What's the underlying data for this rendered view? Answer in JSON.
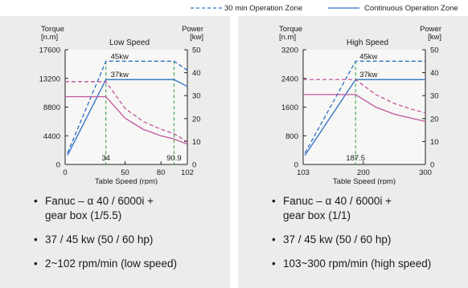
{
  "legend": {
    "dashed_label": "30 min Operation Zone",
    "solid_label": "Continuous Operation Zone",
    "dashed_color": "#2e6fc4",
    "solid_color": "#2e6fc4"
  },
  "chart_data": [
    {
      "type": "line",
      "title": "Low Speed",
      "ylabel_left": [
        "Torque",
        "[n.m]"
      ],
      "ylabel_right": [
        "Power",
        "[kw]"
      ],
      "xlabel": "Table Speed (rpm)",
      "xlim": [
        0,
        102
      ],
      "ylim_left": [
        0,
        17600
      ],
      "ylim_right": [
        0,
        50
      ],
      "x_ticks": [
        "0",
        "50",
        "80",
        "102"
      ],
      "x_tick_values": [
        0,
        50,
        80,
        102
      ],
      "y_left_ticks": [
        "0",
        "4400",
        "8800",
        "13200",
        "17600"
      ],
      "y_left_tick_values": [
        0,
        4400,
        8800,
        13200,
        17600
      ],
      "y_right_ticks": [
        "0",
        "10",
        "20",
        "30",
        "40",
        "50"
      ],
      "y_right_tick_values": [
        0,
        10,
        20,
        30,
        40,
        50
      ],
      "markers": [
        {
          "x": 34,
          "label": "34"
        },
        {
          "x": 90.9,
          "label": "90.9"
        }
      ],
      "annotations": [
        {
          "text": "45kw",
          "x": 38,
          "y_power": 45
        },
        {
          "text": "37kw",
          "x": 38,
          "y_power": 37
        }
      ],
      "series": [
        {
          "axis": "power",
          "style": "dashed",
          "color": "#2e6fc4",
          "x": [
            2,
            34,
            90.9,
            102
          ],
          "y": [
            5,
            45,
            45,
            41
          ]
        },
        {
          "axis": "power",
          "style": "solid",
          "color": "#2e6fc4",
          "x": [
            2,
            34,
            90.9,
            102
          ],
          "y": [
            4,
            37,
            37,
            34
          ]
        },
        {
          "axis": "torque",
          "style": "dashed",
          "color": "#c0559c",
          "x": [
            0,
            34,
            50,
            65,
            80,
            90.9,
            102
          ],
          "y": [
            12700,
            12700,
            8600,
            6600,
            5400,
            4700,
            3500
          ]
        },
        {
          "axis": "torque",
          "style": "solid",
          "color": "#c0559c",
          "x": [
            0,
            34,
            50,
            65,
            80,
            90.9,
            102
          ],
          "y": [
            10400,
            10400,
            7100,
            5400,
            4400,
            3900,
            3100
          ]
        }
      ],
      "grid": false
    },
    {
      "type": "line",
      "title": "High Speed",
      "ylabel_left": [
        "Torque",
        "[n.m]"
      ],
      "ylabel_right": [
        "Power",
        "[kw]"
      ],
      "xlabel": "Table Speed (rpm)",
      "xlim": [
        103,
        300
      ],
      "ylim_left": [
        0,
        3200
      ],
      "ylim_right": [
        0,
        50
      ],
      "x_ticks": [
        "103",
        "200",
        "300"
      ],
      "x_tick_values": [
        103,
        200,
        300
      ],
      "y_left_ticks": [
        "0",
        "800",
        "1600",
        "2400",
        "3200"
      ],
      "y_left_tick_values": [
        0,
        800,
        1600,
        2400,
        3200
      ],
      "y_right_ticks": [
        "0",
        "10",
        "20",
        "30",
        "40",
        "50"
      ],
      "y_right_tick_values": [
        0,
        10,
        20,
        30,
        40,
        50
      ],
      "markers": [
        {
          "x": 187.5,
          "label": "187.5"
        }
      ],
      "annotations": [
        {
          "text": "45kw",
          "x": 194,
          "y_power": 45
        },
        {
          "text": "37kw",
          "x": 194,
          "y_power": 37
        }
      ],
      "series": [
        {
          "axis": "power",
          "style": "dashed",
          "color": "#2e6fc4",
          "x": [
            106,
            187.5,
            300
          ],
          "y": [
            5,
            45,
            45
          ]
        },
        {
          "axis": "power",
          "style": "solid",
          "color": "#2e6fc4",
          "x": [
            106,
            187.5,
            300
          ],
          "y": [
            4,
            37,
            37
          ]
        },
        {
          "axis": "torque",
          "style": "dashed",
          "color": "#c0559c",
          "x": [
            103,
            187.5,
            220,
            250,
            280,
            300
          ],
          "y": [
            2370,
            2370,
            1950,
            1700,
            1530,
            1440
          ]
        },
        {
          "axis": "torque",
          "style": "solid",
          "color": "#c0559c",
          "x": [
            103,
            187.5,
            220,
            250,
            280,
            300
          ],
          "y": [
            1950,
            1950,
            1600,
            1400,
            1280,
            1200
          ]
        }
      ],
      "grid": false
    }
  ],
  "specs": [
    {
      "motor": "Fanuc – α 40 / 6000i +",
      "gearbox": "gear box (1/5.5)",
      "power": "37 / 45 kw (50 / 60 hp)",
      "speed": "2~102 rpm/min (low speed)"
    },
    {
      "motor": "Fanuc – α 40 / 6000i +",
      "gearbox": "gear box (1/1)",
      "power": "37 / 45 kw (50 / 60 hp)",
      "speed": "103~300 rpm/min (high speed)"
    }
  ]
}
